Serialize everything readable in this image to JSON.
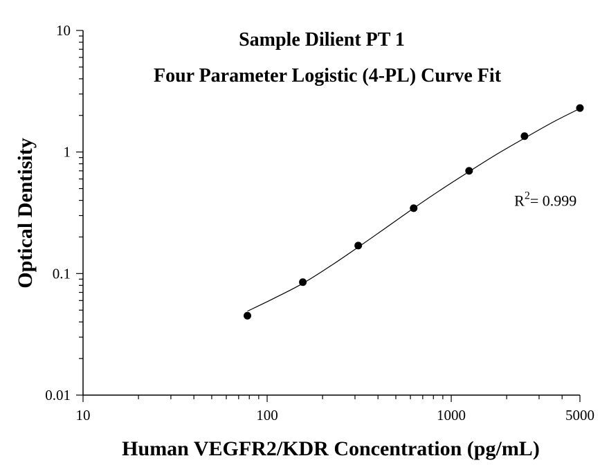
{
  "chart_data": {
    "type": "scatter",
    "title": "Sample Dilient PT 1",
    "subtitle": "Four Parameter Logistic (4-PL) Curve Fit",
    "xlabel": "Human VEGFR2/KDR Concentration (pg/mL)",
    "ylabel": "Optical Dentisity",
    "xscale": "log",
    "yscale": "log",
    "xlim": [
      10,
      5000
    ],
    "ylim": [
      0.01,
      10
    ],
    "xticks": [
      {
        "value": 10,
        "label": "10"
      },
      {
        "value": 100,
        "label": "100"
      },
      {
        "value": 1000,
        "label": "1000"
      },
      {
        "value": 5000,
        "label": "5000"
      }
    ],
    "yticks": [
      {
        "value": 0.01,
        "label": "0.01"
      },
      {
        "value": 0.1,
        "label": "0.1"
      },
      {
        "value": 1,
        "label": "1"
      },
      {
        "value": 10,
        "label": "10"
      }
    ],
    "points": [
      {
        "x": 78.13,
        "y": 0.045
      },
      {
        "x": 156.25,
        "y": 0.085
      },
      {
        "x": 312.5,
        "y": 0.17
      },
      {
        "x": 625,
        "y": 0.345
      },
      {
        "x": 1250,
        "y": 0.7
      },
      {
        "x": 2500,
        "y": 1.35
      },
      {
        "x": 5000,
        "y": 2.3
      }
    ],
    "curve": [
      {
        "x": 78.13,
        "y": 0.049
      },
      {
        "x": 110,
        "y": 0.063
      },
      {
        "x": 156.25,
        "y": 0.083
      },
      {
        "x": 220,
        "y": 0.115
      },
      {
        "x": 312.5,
        "y": 0.165
      },
      {
        "x": 440,
        "y": 0.237
      },
      {
        "x": 625,
        "y": 0.345
      },
      {
        "x": 880,
        "y": 0.49
      },
      {
        "x": 1250,
        "y": 0.69
      },
      {
        "x": 1770,
        "y": 0.96
      },
      {
        "x": 2500,
        "y": 1.3
      },
      {
        "x": 3540,
        "y": 1.75
      },
      {
        "x": 5000,
        "y": 2.28
      }
    ],
    "annotation": {
      "text_base": "R",
      "text_sup": "2",
      "text_rest": "= 0.999",
      "x": 2200,
      "y": 0.36
    },
    "grid": false,
    "legend": "none"
  }
}
